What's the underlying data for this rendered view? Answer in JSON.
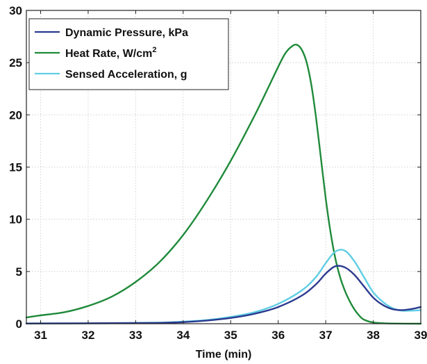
{
  "chart_data": {
    "type": "line",
    "title": "",
    "xlabel": "Time (min)",
    "ylabel": "",
    "xlim": [
      30.7,
      39
    ],
    "ylim": [
      0,
      30
    ],
    "xticks": [
      "31",
      "32",
      "33",
      "34",
      "35",
      "36",
      "37",
      "38",
      "39"
    ],
    "yticks": [
      "0",
      "5",
      "10",
      "15",
      "20",
      "25",
      "30"
    ],
    "grid": true,
    "legend": {
      "placement": "top-left",
      "entries": [
        {
          "series_index": 0,
          "label": "Dynamic Pressure, kPa"
        },
        {
          "series_index": 1,
          "label": "Heat Rate, W/cm",
          "superscript": "2"
        },
        {
          "series_index": 2,
          "label": "Sensed Acceleration, g"
        }
      ]
    },
    "series": [
      {
        "name": "Dynamic Pressure, kPa",
        "color": "#2b3a8f",
        "points": [
          [
            30.7,
            0.02
          ],
          [
            31.5,
            0.03
          ],
          [
            32.5,
            0.05
          ],
          [
            33.5,
            0.08
          ],
          [
            34.0,
            0.15
          ],
          [
            34.5,
            0.3
          ],
          [
            35.0,
            0.55
          ],
          [
            35.5,
            0.95
          ],
          [
            36.0,
            1.6
          ],
          [
            36.5,
            2.7
          ],
          [
            36.8,
            3.8
          ],
          [
            37.0,
            4.8
          ],
          [
            37.2,
            5.5
          ],
          [
            37.4,
            5.4
          ],
          [
            37.6,
            4.7
          ],
          [
            37.8,
            3.6
          ],
          [
            38.0,
            2.5
          ],
          [
            38.2,
            1.8
          ],
          [
            38.4,
            1.4
          ],
          [
            38.6,
            1.3
          ],
          [
            38.8,
            1.4
          ],
          [
            39.0,
            1.6
          ]
        ]
      },
      {
        "name": "Heat Rate, W/cm",
        "color": "#1f8a3a",
        "points": [
          [
            30.7,
            0.6
          ],
          [
            31.0,
            0.8
          ],
          [
            31.5,
            1.1
          ],
          [
            32.0,
            1.7
          ],
          [
            32.5,
            2.6
          ],
          [
            33.0,
            4.0
          ],
          [
            33.5,
            5.9
          ],
          [
            34.0,
            8.5
          ],
          [
            34.5,
            11.8
          ],
          [
            35.0,
            15.6
          ],
          [
            35.5,
            19.9
          ],
          [
            35.8,
            22.7
          ],
          [
            36.0,
            24.6
          ],
          [
            36.15,
            25.9
          ],
          [
            36.3,
            26.6
          ],
          [
            36.4,
            26.7
          ],
          [
            36.5,
            26.2
          ],
          [
            36.6,
            25.0
          ],
          [
            36.7,
            22.8
          ],
          [
            36.8,
            19.6
          ],
          [
            36.9,
            15.8
          ],
          [
            37.0,
            12.0
          ],
          [
            37.1,
            8.8
          ],
          [
            37.2,
            6.3
          ],
          [
            37.3,
            4.5
          ],
          [
            37.4,
            3.2
          ],
          [
            37.5,
            2.2
          ],
          [
            37.6,
            1.4
          ],
          [
            37.7,
            0.8
          ],
          [
            37.8,
            0.4
          ],
          [
            38.0,
            0.12
          ],
          [
            38.3,
            0.03
          ],
          [
            39.0,
            0.0
          ]
        ]
      },
      {
        "name": "Sensed Acceleration, g",
        "color": "#5fcde4",
        "points": [
          [
            30.7,
            0.03
          ],
          [
            31.5,
            0.04
          ],
          [
            32.5,
            0.06
          ],
          [
            33.5,
            0.1
          ],
          [
            34.0,
            0.2
          ],
          [
            34.5,
            0.35
          ],
          [
            35.0,
            0.65
          ],
          [
            35.5,
            1.1
          ],
          [
            36.0,
            1.9
          ],
          [
            36.5,
            3.2
          ],
          [
            36.8,
            4.5
          ],
          [
            37.0,
            5.8
          ],
          [
            37.2,
            6.9
          ],
          [
            37.4,
            7.0
          ],
          [
            37.6,
            6.0
          ],
          [
            37.8,
            4.5
          ],
          [
            38.0,
            3.0
          ],
          [
            38.2,
            2.1
          ],
          [
            38.4,
            1.5
          ],
          [
            38.6,
            1.25
          ],
          [
            38.8,
            1.25
          ],
          [
            39.0,
            1.3
          ]
        ]
      }
    ]
  }
}
